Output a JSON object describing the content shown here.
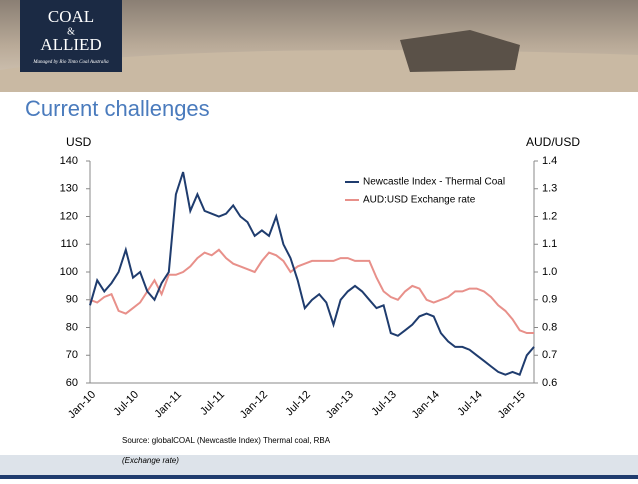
{
  "header": {
    "logo_line1": "COAL",
    "logo_amp": "&",
    "logo_line2": "ALLIED",
    "logo_tagline": "Managed by Rio Tinto Coal Australia",
    "title": "Current challenges"
  },
  "footer": {
    "source_line1": "Source: globalCOAL (Newcastle Index) Thermal coal, RBA",
    "source_line2": "(Exchange rate)"
  },
  "chart_data": {
    "type": "line",
    "y_label": "USD",
    "y2_label": "AUD/USD",
    "categories": [
      "Jan-10",
      null,
      null,
      null,
      null,
      null,
      "Jul-10",
      null,
      null,
      null,
      null,
      null,
      "Jan-11",
      null,
      null,
      null,
      null,
      null,
      "Jul-11",
      null,
      null,
      null,
      null,
      null,
      "Jan-12",
      null,
      null,
      null,
      null,
      null,
      "Jul-12",
      null,
      null,
      null,
      null,
      null,
      "Jan-13",
      null,
      null,
      null,
      null,
      null,
      "Jul-13",
      null,
      null,
      null,
      null,
      null,
      "Jan-14",
      null,
      null,
      null,
      null,
      null,
      "Jul-14",
      null,
      null,
      null,
      null,
      null,
      "Jan-15",
      null,
      null
    ],
    "series": [
      {
        "name": "Newcastle Index  - Thermal Coal",
        "color": "#1f3c6e",
        "axis": "y",
        "values": [
          88,
          97,
          93,
          96,
          100,
          108,
          98,
          100,
          93,
          90,
          96,
          100,
          128,
          136,
          122,
          128,
          122,
          121,
          120,
          121,
          124,
          120,
          118,
          113,
          115,
          113,
          120,
          110,
          105,
          97,
          87,
          90,
          92,
          89,
          81,
          90,
          93,
          95,
          93,
          90,
          87,
          88,
          78,
          77,
          79,
          81,
          84,
          85,
          84,
          78,
          75,
          73,
          73,
          72,
          70,
          68,
          66,
          64,
          63,
          64,
          63,
          70,
          73
        ]
      },
      {
        "name": "AUD:USD Exchange rate",
        "color": "#e8908a",
        "axis": "y2",
        "values": [
          0.9,
          0.89,
          0.91,
          0.92,
          0.86,
          0.85,
          0.87,
          0.89,
          0.93,
          0.97,
          0.92,
          0.99,
          0.99,
          1.0,
          1.02,
          1.05,
          1.07,
          1.06,
          1.08,
          1.05,
          1.03,
          1.02,
          1.01,
          1.0,
          1.04,
          1.07,
          1.06,
          1.04,
          1.0,
          1.02,
          1.03,
          1.04,
          1.04,
          1.04,
          1.04,
          1.05,
          1.05,
          1.04,
          1.04,
          1.04,
          0.98,
          0.93,
          0.91,
          0.9,
          0.93,
          0.95,
          0.94,
          0.9,
          0.89,
          0.9,
          0.91,
          0.93,
          0.93,
          0.94,
          0.94,
          0.93,
          0.91,
          0.88,
          0.86,
          0.83,
          0.79,
          0.78,
          0.78
        ]
      }
    ],
    "ylim": [
      60,
      140
    ],
    "yticks": [
      60,
      70,
      80,
      90,
      100,
      110,
      120,
      130,
      140
    ],
    "y2lim": [
      0.6,
      1.4
    ],
    "y2ticks": [
      0.6,
      0.7,
      0.8,
      0.9,
      {
        "value": 1,
        "label": "1.0"
      },
      1.1,
      1.2,
      1.3,
      1.4
    ],
    "legend": "top-right"
  }
}
